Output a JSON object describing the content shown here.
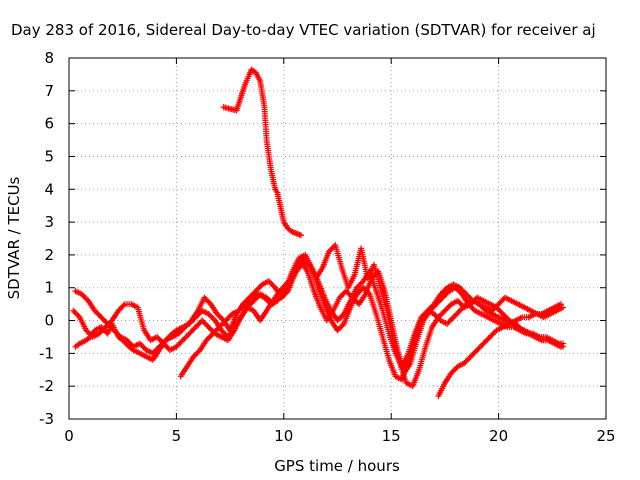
{
  "chart_data": {
    "type": "scatter",
    "title": "Day 283 of 2016, Sidereal Day-to-day VTEC variation (SDTVAR) for receiver aj",
    "xlabel": "GPS time / hours",
    "ylabel": "SDTVAR / TECUs",
    "xlim": [
      0,
      25
    ],
    "ylim": [
      -3,
      8
    ],
    "xticks": [
      "0",
      "5",
      "10",
      "15",
      "20",
      "25"
    ],
    "yticks": [
      "-3",
      "-2",
      "-1",
      "0",
      "1",
      "2",
      "3",
      "4",
      "5",
      "6",
      "7",
      "8"
    ],
    "grid": true,
    "marker": "+",
    "color": "#ff0000",
    "series": [
      {
        "x": [
          7.2,
          7.5,
          7.8,
          8.0,
          8.2,
          8.4,
          8.5,
          8.7,
          8.9,
          9.1,
          9.2,
          9.4,
          9.5,
          9.6,
          9.7,
          9.8,
          9.9,
          10.0,
          10.2,
          10.4,
          10.6,
          10.8
        ],
        "y": [
          6.5,
          6.45,
          6.4,
          6.8,
          7.2,
          7.5,
          7.65,
          7.55,
          7.3,
          6.5,
          5.5,
          4.6,
          4.3,
          4.0,
          3.9,
          3.6,
          3.3,
          3.0,
          2.8,
          2.7,
          2.65,
          2.6
        ]
      },
      {
        "x": [
          0.3,
          0.5,
          0.8,
          1.0,
          1.2,
          1.5,
          1.8,
          2.0,
          2.3,
          2.5,
          2.8,
          3.0,
          3.3,
          3.6,
          3.9,
          4.2,
          4.5,
          4.8,
          5.0,
          5.3,
          5.6,
          5.9,
          6.2,
          6.5,
          6.8,
          7.1,
          7.4,
          7.7,
          8.0,
          8.3,
          8.6,
          8.9,
          9.2,
          9.5,
          9.8,
          10.1,
          10.4,
          10.7,
          11.0,
          11.3,
          11.6,
          11.9,
          12.2,
          12.5,
          12.8,
          13.1,
          13.4,
          13.7,
          14.0,
          14.3,
          14.6,
          14.9,
          15.2,
          15.5,
          15.8,
          16.1,
          16.4,
          16.7,
          17.0,
          17.3,
          17.6,
          17.9,
          18.2,
          18.5,
          18.8,
          19.1,
          19.4,
          19.7,
          20.0,
          20.3,
          20.6,
          20.9,
          21.2,
          21.5,
          21.8,
          22.1,
          22.4,
          22.7,
          23.0
        ],
        "y": [
          -0.8,
          -0.7,
          -0.6,
          -0.5,
          -0.3,
          -0.2,
          -0.4,
          -0.1,
          -0.5,
          -0.6,
          -0.8,
          -0.9,
          -1.0,
          -1.1,
          -1.2,
          -0.9,
          -0.6,
          -0.4,
          -0.3,
          -0.2,
          -0.1,
          0.1,
          0.3,
          0.2,
          0.0,
          -0.3,
          -0.5,
          -0.2,
          0.1,
          0.4,
          0.6,
          0.8,
          0.7,
          0.5,
          0.8,
          1.0,
          1.5,
          1.9,
          2.0,
          1.6,
          1.0,
          0.5,
          0.0,
          -0.3,
          -0.1,
          0.4,
          0.8,
          1.0,
          0.8,
          0.2,
          -0.5,
          -1.2,
          -1.7,
          -1.8,
          -1.2,
          -0.5,
          0.0,
          0.3,
          0.5,
          0.8,
          1.0,
          1.1,
          1.0,
          0.8,
          0.6,
          0.5,
          0.3,
          0.2,
          0.1,
          0.0,
          -0.1,
          -0.2,
          -0.3,
          -0.4,
          -0.5,
          -0.6,
          -0.6,
          -0.7,
          -0.7
        ]
      },
      {
        "x": [
          0.3,
          0.6,
          0.9,
          1.2,
          1.5,
          1.8,
          2.1,
          2.4,
          2.7,
          3.0,
          3.3,
          3.6,
          3.9,
          4.2,
          4.5,
          4.8,
          5.1,
          5.4,
          5.7,
          6.0,
          6.3,
          6.6,
          6.9,
          7.2,
          7.5,
          7.8,
          8.1,
          8.4,
          8.7,
          9.0,
          9.3,
          9.6,
          9.9,
          10.2,
          10.5,
          10.8,
          11.1,
          11.4,
          11.7,
          12.0,
          12.3,
          12.6,
          12.9,
          13.2,
          13.5,
          13.8,
          14.1,
          14.4,
          14.7,
          15.0,
          15.3,
          15.6,
          15.9,
          16.2,
          16.5,
          16.8,
          17.1,
          17.4,
          17.7,
          18.0,
          18.3,
          18.6,
          18.9,
          19.2,
          19.5,
          19.8,
          20.1,
          20.4,
          20.7,
          21.0,
          21.3,
          21.6,
          21.9,
          22.2,
          22.5,
          22.8,
          23.0
        ],
        "y": [
          0.9,
          0.8,
          0.6,
          0.3,
          0.1,
          -0.1,
          -0.3,
          -0.5,
          -0.6,
          -0.8,
          -0.7,
          -0.9,
          -1.0,
          -0.8,
          -0.6,
          -0.5,
          -0.4,
          -0.2,
          0.0,
          0.3,
          0.7,
          0.5,
          0.2,
          0.0,
          -0.3,
          0.2,
          0.5,
          0.7,
          0.9,
          1.1,
          1.2,
          1.0,
          0.7,
          0.9,
          1.4,
          1.8,
          1.5,
          0.9,
          0.4,
          0.0,
          0.3,
          0.7,
          0.9,
          0.7,
          0.5,
          0.8,
          1.3,
          1.5,
          0.9,
          0.0,
          -0.9,
          -1.6,
          -1.3,
          -0.6,
          0.0,
          0.3,
          0.5,
          0.7,
          0.9,
          1.0,
          0.8,
          0.5,
          0.3,
          0.2,
          0.1,
          0.0,
          -0.1,
          -0.2,
          -0.2,
          -0.3,
          -0.4,
          -0.4,
          -0.5,
          -0.5,
          -0.6,
          -0.7,
          -0.8
        ]
      },
      {
        "x": [
          0.2,
          0.5,
          0.8,
          1.1,
          1.4,
          1.7,
          2.0,
          2.3,
          2.6,
          2.9,
          3.2,
          3.5,
          3.8,
          4.1,
          4.4,
          4.7,
          5.0,
          5.3,
          5.6,
          5.9,
          6.2,
          6.5,
          6.8,
          7.1,
          7.4,
          7.7,
          8.0,
          8.3,
          8.6,
          8.9,
          9.2,
          9.5,
          9.8,
          10.1,
          10.4,
          10.7,
          11.0,
          11.3,
          11.6,
          11.9,
          12.2,
          12.5,
          12.8,
          13.1,
          13.4,
          13.7,
          14.0,
          14.3,
          14.6,
          14.9,
          15.2,
          15.5,
          15.8,
          16.1,
          16.4,
          16.7,
          17.0,
          17.3,
          17.6,
          17.9,
          18.2,
          18.5,
          18.8,
          19.1,
          19.4,
          19.7,
          20.0,
          20.3,
          20.6,
          20.9,
          21.2,
          21.5,
          21.8,
          22.1,
          22.4,
          22.7,
          23.0
        ],
        "y": [
          0.3,
          0.1,
          -0.3,
          -0.5,
          -0.4,
          -0.2,
          0.0,
          0.3,
          0.5,
          0.5,
          0.4,
          -0.3,
          -0.6,
          -0.5,
          -0.7,
          -0.9,
          -0.8,
          -0.6,
          -0.4,
          -0.2,
          0.0,
          -0.2,
          -0.4,
          -0.5,
          -0.6,
          -0.3,
          0.1,
          0.4,
          0.3,
          0.0,
          0.3,
          0.6,
          0.9,
          1.1,
          1.3,
          1.6,
          1.8,
          1.6,
          1.2,
          0.7,
          0.3,
          0.0,
          0.2,
          0.6,
          1.0,
          1.2,
          1.5,
          0.9,
          0.3,
          -0.4,
          -1.0,
          -1.4,
          -1.0,
          -0.4,
          0.1,
          0.3,
          0.2,
          0.0,
          -0.1,
          0.1,
          0.3,
          0.5,
          0.6,
          0.5,
          0.4,
          0.3,
          0.5,
          0.7,
          0.6,
          0.5,
          0.4,
          0.3,
          0.2,
          0.1,
          0.2,
          0.3,
          0.4
        ]
      },
      {
        "x": [
          5.2,
          5.5,
          5.8,
          6.1,
          6.4,
          6.7,
          7.0,
          7.3,
          7.6,
          7.9,
          8.2,
          8.5,
          8.8,
          9.1,
          9.4,
          9.7,
          10.0,
          10.3,
          10.6,
          10.9,
          11.2,
          11.5,
          11.8,
          12.1,
          12.4,
          12.7,
          13.0,
          13.3,
          13.6,
          13.9,
          14.2,
          14.5,
          14.8,
          15.1,
          15.4,
          15.7,
          16.0,
          16.3,
          16.6,
          16.9,
          17.2,
          17.5,
          17.8,
          18.1,
          18.4,
          18.7,
          19.0,
          19.3,
          19.6,
          19.9,
          20.2,
          20.5,
          20.8,
          21.1,
          21.4,
          21.7,
          22.0,
          22.3,
          22.6,
          22.9
        ],
        "y": [
          -1.7,
          -1.4,
          -1.1,
          -0.9,
          -0.6,
          -0.4,
          -0.2,
          0.0,
          0.2,
          0.3,
          0.5,
          0.6,
          0.8,
          0.7,
          0.5,
          0.6,
          0.8,
          1.2,
          1.6,
          1.9,
          1.7,
          1.3,
          1.6,
          2.1,
          2.3,
          1.6,
          1.0,
          1.4,
          2.2,
          1.3,
          1.7,
          1.0,
          0.3,
          -0.6,
          -1.3,
          -1.9,
          -2.0,
          -1.5,
          -0.8,
          -0.2,
          0.1,
          0.3,
          0.5,
          0.6,
          0.4,
          0.5,
          0.7,
          0.6,
          0.5,
          0.4,
          0.2,
          0.0,
          -0.1,
          -0.3,
          -0.4,
          -0.5,
          -0.6,
          -0.6,
          -0.7,
          -0.8
        ]
      },
      {
        "x": [
          17.2,
          17.5,
          17.8,
          18.1,
          18.4,
          18.7,
          19.0,
          19.3,
          19.6,
          19.9,
          20.2,
          20.5,
          20.8,
          21.1,
          21.4,
          21.7,
          22.0,
          22.3,
          22.6,
          22.9
        ],
        "y": [
          -2.3,
          -1.9,
          -1.6,
          -1.4,
          -1.3,
          -1.1,
          -0.9,
          -0.7,
          -0.5,
          -0.3,
          -0.2,
          -0.1,
          0.0,
          0.1,
          0.1,
          0.2,
          0.2,
          0.3,
          0.4,
          0.5
        ]
      }
    ]
  }
}
